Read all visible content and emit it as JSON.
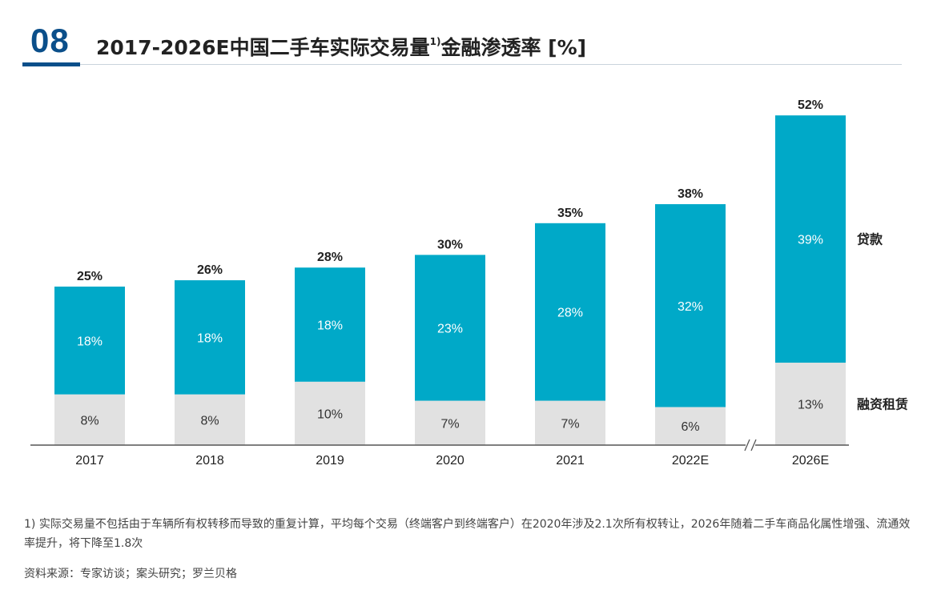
{
  "header": {
    "number": "08",
    "title_main": "2017-2026E中国二手车实际交易量",
    "title_sup": "1)",
    "title_tail": "金融渗透率 [%]"
  },
  "colors": {
    "loan": "#00a9c8",
    "leasing": "#e1e1e1",
    "accent": "#0b4f8a",
    "axis": "#555555",
    "text": "#222222"
  },
  "chart_data": {
    "type": "bar",
    "stacked": true,
    "categories": [
      "2017",
      "2018",
      "2019",
      "2020",
      "2021",
      "2022E",
      "2026E"
    ],
    "series": [
      {
        "name": "融资租赁",
        "values": [
          8,
          8,
          10,
          7,
          7,
          6,
          13
        ],
        "labels": [
          "8%",
          "8%",
          "10%",
          "7%",
          "7%",
          "6%",
          "13%"
        ]
      },
      {
        "name": "贷款",
        "values": [
          18,
          18,
          18,
          23,
          28,
          32,
          39
        ],
        "labels": [
          "18%",
          "18%",
          "18%",
          "23%",
          "28%",
          "32%",
          "39%"
        ]
      }
    ],
    "totals": [
      25,
      26,
      28,
      30,
      35,
      38,
      52
    ],
    "total_labels": [
      "25%",
      "26%",
      "28%",
      "30%",
      "35%",
      "38%",
      "52%"
    ],
    "axis_break_before": "2026E",
    "axis_break_symbol": "//",
    "legend": "right",
    "grid": false
  },
  "footnote": "1) 实际交易量不包括由于车辆所有权转移而导致的重复计算，平均每个交易（终端客户到终端客户）在2020年涉及2.1次所有权转让，2026年随着二手车商品化属性增强、流通效率提升，将下降至1.8次",
  "source": "资料来源：专家访谈；案头研究；罗兰贝格"
}
